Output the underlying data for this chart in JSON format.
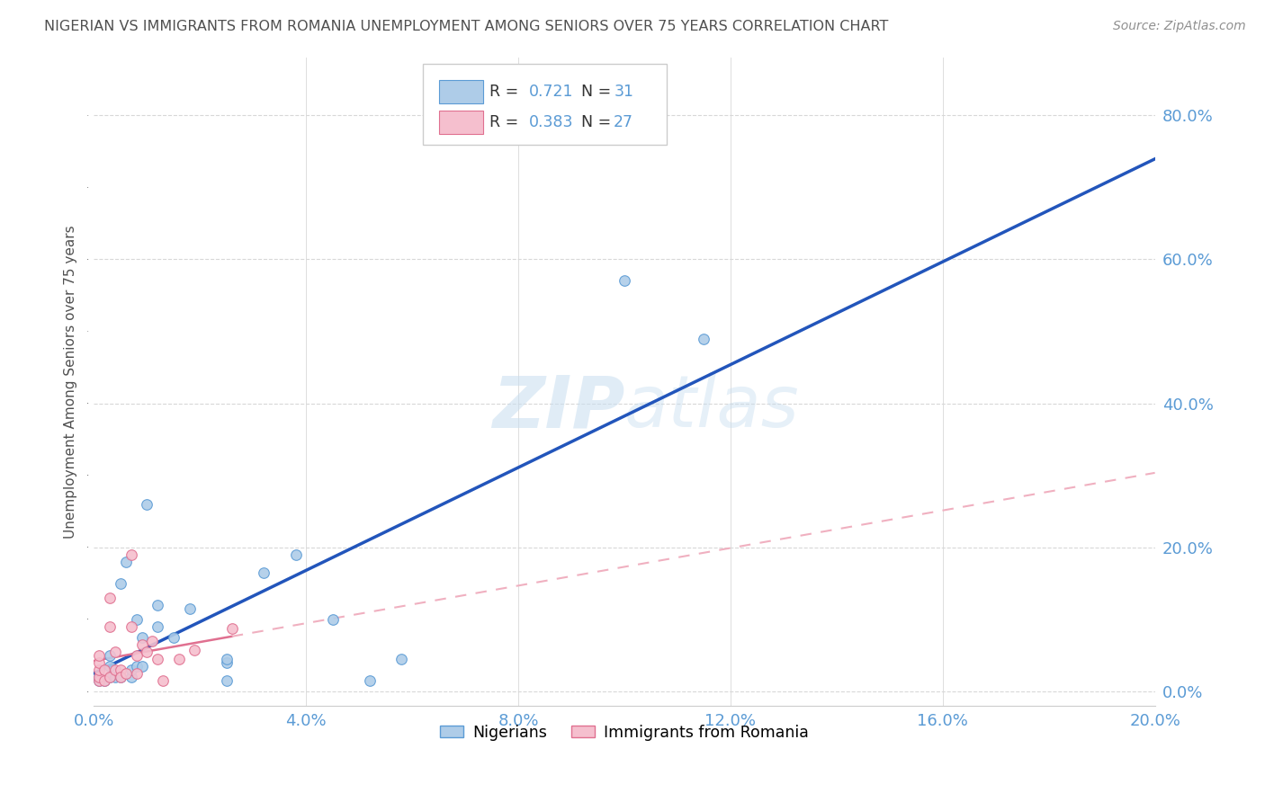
{
  "title": "NIGERIAN VS IMMIGRANTS FROM ROMANIA UNEMPLOYMENT AMONG SENIORS OVER 75 YEARS CORRELATION CHART",
  "source": "Source: ZipAtlas.com",
  "ylabel": "Unemployment Among Seniors over 75 years",
  "watermark": "ZIPAtlas",
  "xlim": [
    0.0,
    0.2
  ],
  "ylim": [
    -0.02,
    0.88
  ],
  "x_ticks": [
    0.0,
    0.04,
    0.08,
    0.12,
    0.16,
    0.2
  ],
  "y_ticks": [
    0.0,
    0.2,
    0.4,
    0.6,
    0.8
  ],
  "nigerian_color": "#aecce8",
  "nigerian_edge": "#5b9bd5",
  "romanian_color": "#f5bfce",
  "romanian_edge": "#e07090",
  "trend_blue": "#2255bb",
  "trend_pink_solid": "#e07090",
  "trend_pink_dash": "#f0b0c0",
  "nigerian_R": 0.721,
  "nigerian_N": 31,
  "romanian_R": 0.383,
  "romanian_N": 27,
  "nigerian_x": [
    0.001,
    0.001,
    0.002,
    0.003,
    0.003,
    0.003,
    0.004,
    0.005,
    0.005,
    0.006,
    0.007,
    0.007,
    0.008,
    0.008,
    0.009,
    0.009,
    0.01,
    0.012,
    0.012,
    0.015,
    0.018,
    0.025,
    0.025,
    0.025,
    0.032,
    0.038,
    0.045,
    0.052,
    0.058,
    0.1,
    0.115
  ],
  "nigerian_y": [
    0.015,
    0.02,
    0.015,
    0.02,
    0.035,
    0.05,
    0.02,
    0.02,
    0.15,
    0.18,
    0.02,
    0.03,
    0.035,
    0.1,
    0.035,
    0.075,
    0.26,
    0.09,
    0.12,
    0.075,
    0.115,
    0.015,
    0.04,
    0.045,
    0.165,
    0.19,
    0.1,
    0.015,
    0.045,
    0.57,
    0.49
  ],
  "romanian_x": [
    0.001,
    0.001,
    0.001,
    0.001,
    0.001,
    0.002,
    0.002,
    0.003,
    0.003,
    0.003,
    0.004,
    0.004,
    0.005,
    0.005,
    0.006,
    0.007,
    0.007,
    0.008,
    0.008,
    0.009,
    0.01,
    0.011,
    0.012,
    0.013,
    0.016,
    0.019,
    0.026
  ],
  "romanian_y": [
    0.015,
    0.02,
    0.03,
    0.04,
    0.05,
    0.015,
    0.03,
    0.09,
    0.13,
    0.02,
    0.03,
    0.055,
    0.03,
    0.02,
    0.025,
    0.09,
    0.19,
    0.025,
    0.05,
    0.065,
    0.055,
    0.07,
    0.045,
    0.015,
    0.045,
    0.057,
    0.088
  ],
  "background_color": "#ffffff",
  "grid_color": "#d8d8d8",
  "title_color": "#505050",
  "axis_color": "#5b9bd5",
  "marker_size": 70
}
